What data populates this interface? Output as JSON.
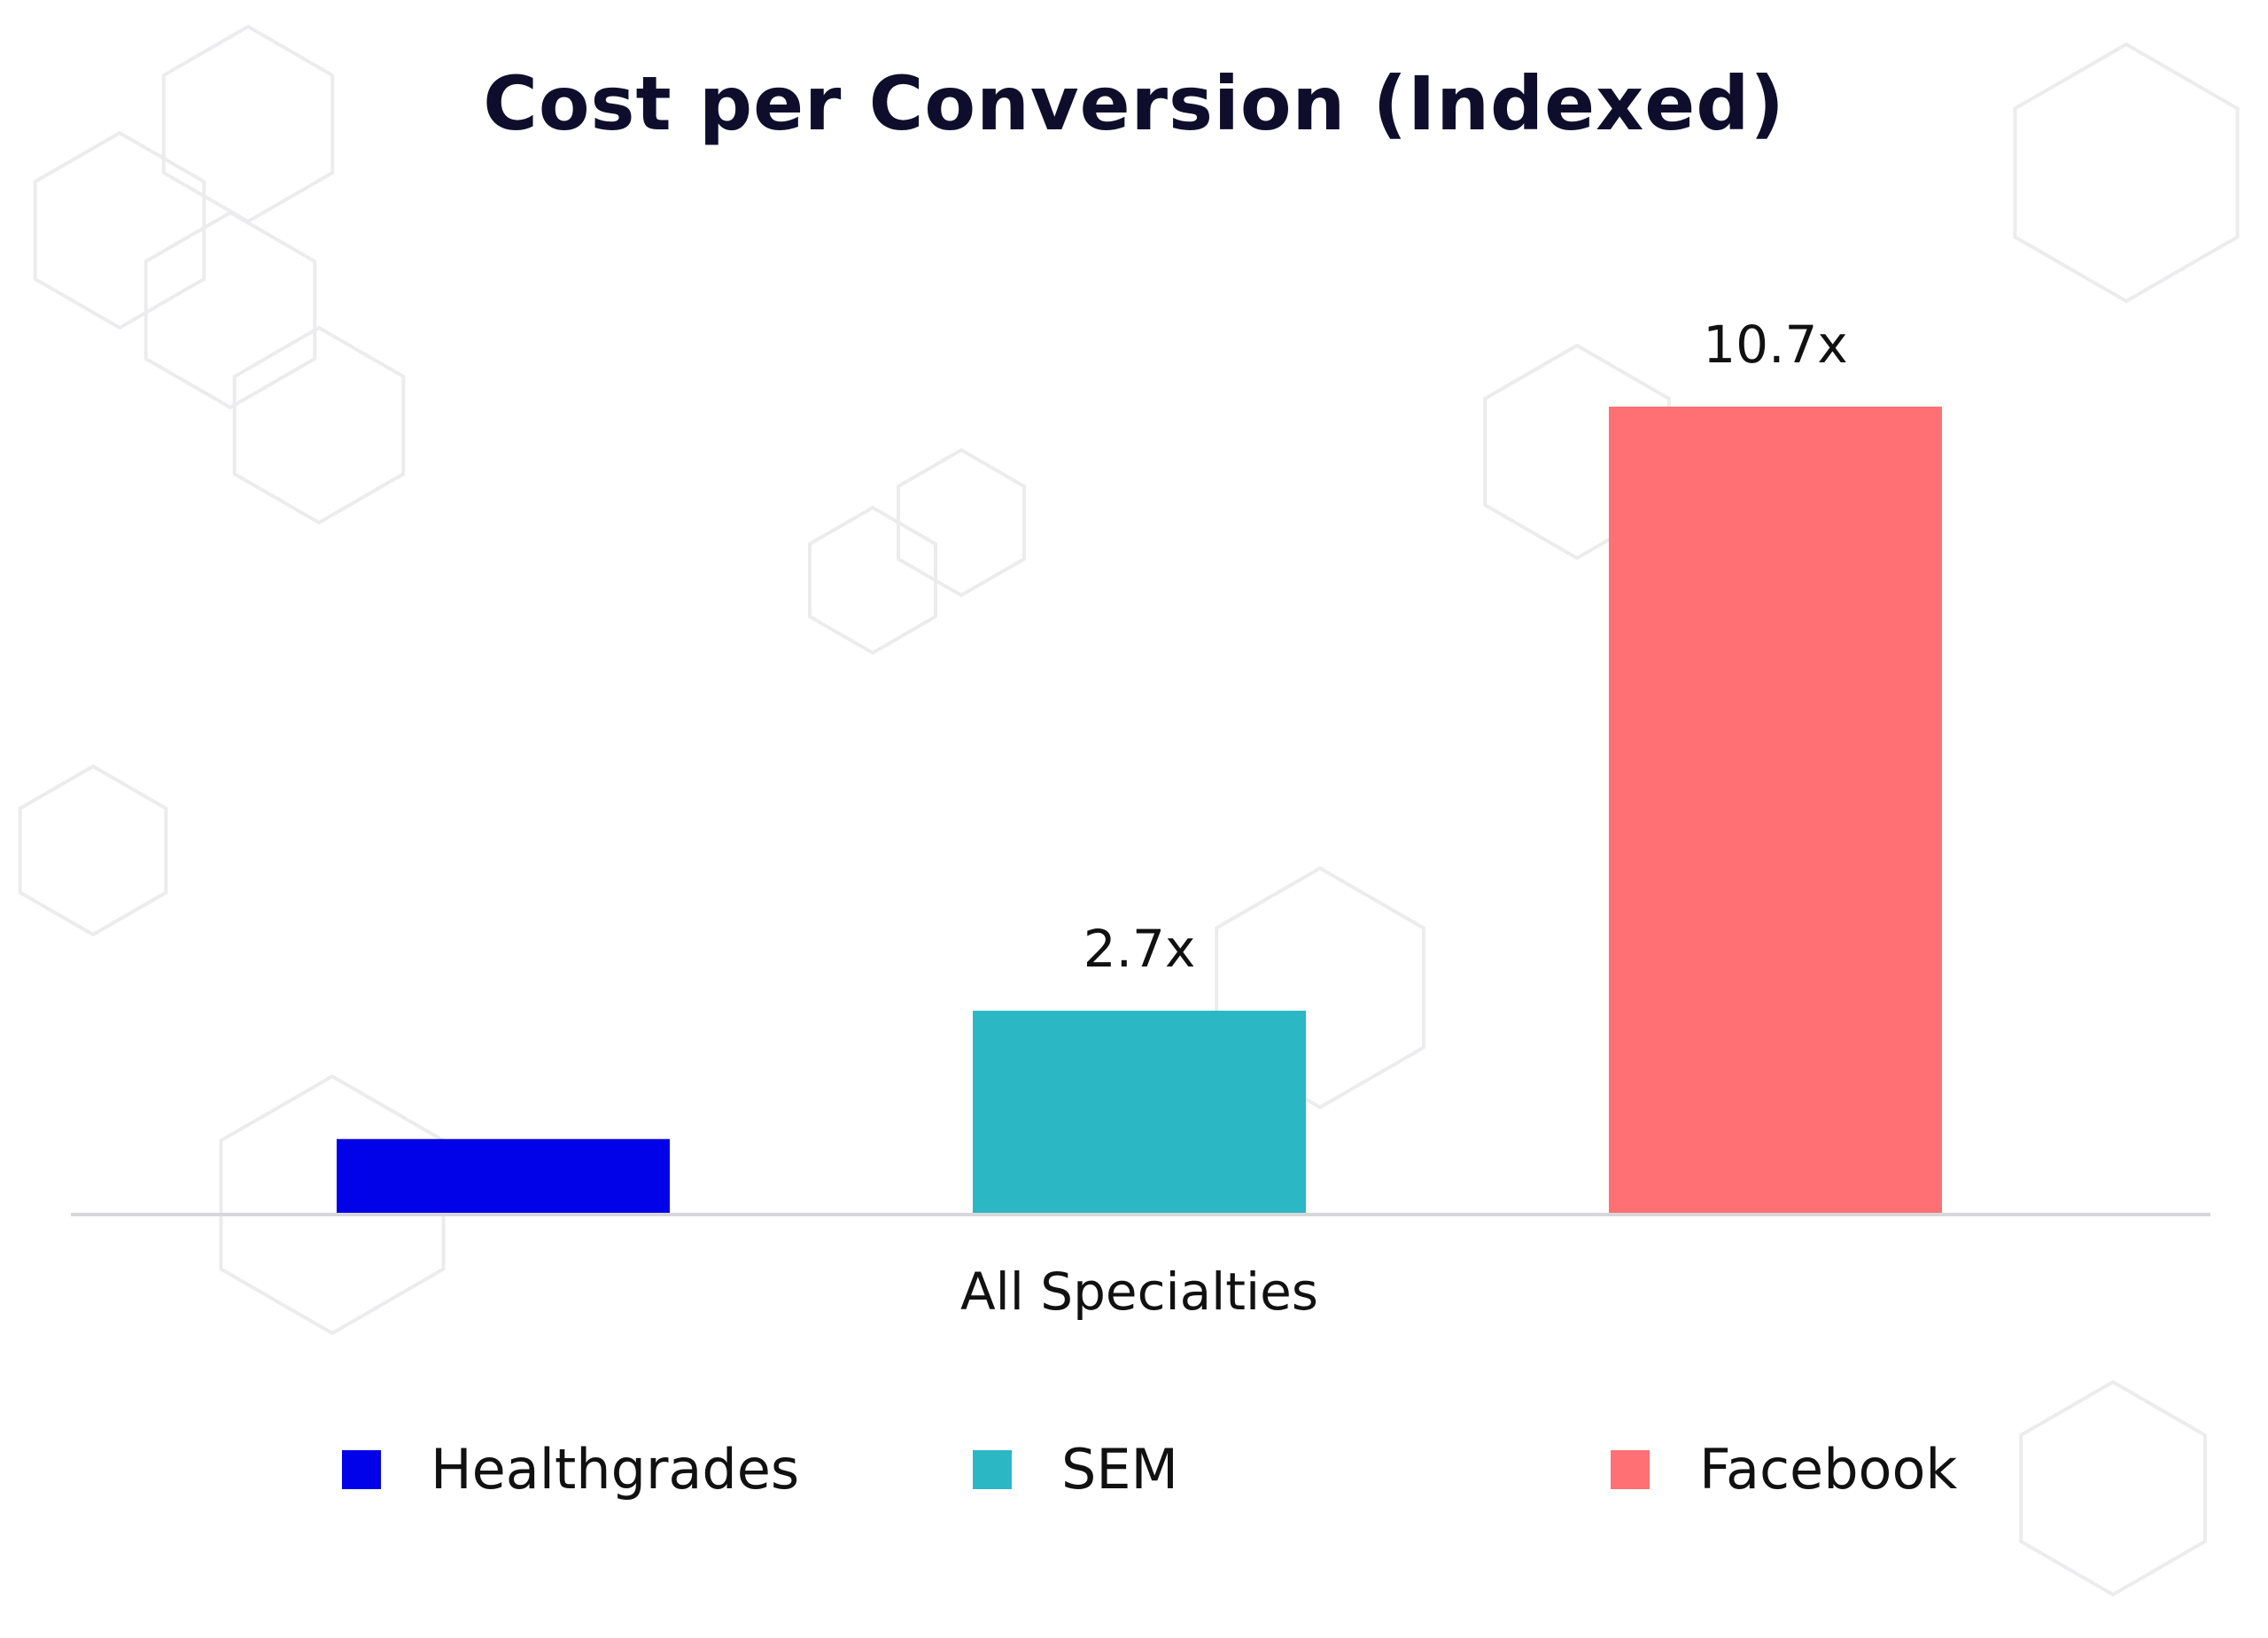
{
  "chart_data": {
    "type": "bar",
    "title": "Cost per Conversion (Indexed)",
    "xlabel": "All Specialties",
    "categories": [
      "All Specialties"
    ],
    "series": [
      {
        "name": "Healthgrades",
        "values": [
          1.0
        ],
        "label": "",
        "color": "#0202e8"
      },
      {
        "name": "SEM",
        "values": [
          2.7
        ],
        "label": "2.7x",
        "color": "#2bb7c4"
      },
      {
        "name": "Facebook",
        "values": [
          10.7
        ],
        "label": "10.7x",
        "color": "#ff7074"
      }
    ],
    "ylim": [
      0,
      10.7
    ],
    "grid": false,
    "legend": "bottom"
  }
}
